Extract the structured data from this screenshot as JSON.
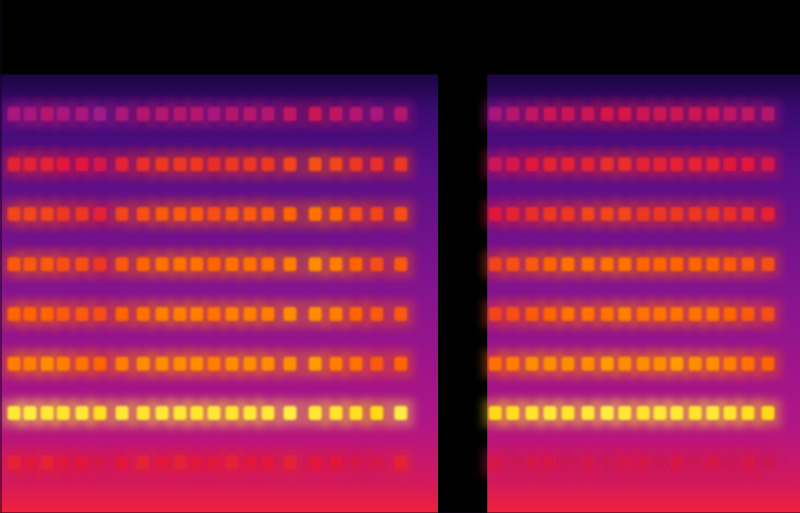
{
  "chart_data": {
    "type": "heatmap",
    "tick_labels": false,
    "xlim": [
      0,
      100
    ],
    "ylim": [
      0,
      100
    ],
    "zlim": [
      0,
      1
    ],
    "segments": [
      {
        "x": [
          0,
          54.75
        ],
        "fmax": 85.5
      },
      {
        "x": [
          60.9,
          100
        ],
        "fmax": 85.5
      }
    ],
    "x": [
      1.75,
      3.75,
      5.9,
      7.9,
      10.25,
      12.5,
      15.25,
      17.9,
      20.25,
      22.5,
      24.6,
      26.75,
      29,
      31.25,
      33.5,
      36.25,
      39.4,
      42,
      44.5,
      47.1,
      50.1,
      61.9,
      64.1,
      66.5,
      68.75,
      71,
      73.5,
      75.9,
      78.1,
      80.4,
      82.5,
      84.6,
      86.9,
      89.1,
      91.25,
      93.5,
      96
    ],
    "y": [
      9.8,
      19.5,
      29.1,
      38.8,
      48.5,
      58.3,
      68.0,
      77.8
    ],
    "values": [
      [
        0.62,
        0.6,
        0.62,
        0.6,
        0.6,
        0.58,
        0.6,
        0.62,
        0.6,
        0.62,
        0.6,
        0.6,
        0.62,
        0.6,
        0.6,
        0.62,
        0.6,
        0.6,
        0.58,
        0.58,
        0.62,
        0.58,
        0.56,
        0.58,
        0.58,
        0.56,
        0.58,
        0.56,
        0.58,
        0.58,
        0.56,
        0.58,
        0.56,
        0.58,
        0.56,
        0.58,
        0.56
      ],
      [
        0.95,
        0.96,
        0.95,
        0.94,
        0.95,
        0.93,
        0.95,
        0.94,
        0.95,
        0.95,
        0.94,
        0.95,
        0.94,
        0.95,
        0.95,
        0.96,
        0.95,
        0.94,
        0.93,
        0.92,
        0.96,
        0.92,
        0.93,
        0.94,
        0.95,
        0.94,
        0.95,
        0.96,
        0.95,
        0.94,
        0.95,
        0.95,
        0.94,
        0.95,
        0.94,
        0.93,
        0.92
      ],
      [
        0.78,
        0.78,
        0.8,
        0.78,
        0.76,
        0.74,
        0.78,
        0.8,
        0.8,
        0.8,
        0.8,
        0.78,
        0.8,
        0.8,
        0.8,
        0.8,
        0.82,
        0.78,
        0.76,
        0.72,
        0.74,
        0.76,
        0.78,
        0.8,
        0.8,
        0.8,
        0.8,
        0.82,
        0.8,
        0.8,
        0.8,
        0.82,
        0.8,
        0.8,
        0.78,
        0.76,
        0.74
      ],
      [
        0.74,
        0.74,
        0.74,
        0.72,
        0.72,
        0.7,
        0.74,
        0.76,
        0.78,
        0.78,
        0.78,
        0.76,
        0.78,
        0.78,
        0.78,
        0.8,
        0.8,
        0.78,
        0.74,
        0.72,
        0.72,
        0.68,
        0.7,
        0.72,
        0.74,
        0.76,
        0.76,
        0.76,
        0.78,
        0.76,
        0.76,
        0.76,
        0.76,
        0.76,
        0.74,
        0.72,
        0.7
      ],
      [
        0.72,
        0.72,
        0.72,
        0.7,
        0.7,
        0.66,
        0.72,
        0.74,
        0.76,
        0.76,
        0.76,
        0.74,
        0.76,
        0.76,
        0.76,
        0.78,
        0.8,
        0.78,
        0.74,
        0.7,
        0.72,
        0.68,
        0.7,
        0.72,
        0.74,
        0.76,
        0.76,
        0.76,
        0.76,
        0.74,
        0.74,
        0.74,
        0.74,
        0.74,
        0.72,
        0.72,
        0.7
      ],
      [
        0.68,
        0.68,
        0.68,
        0.66,
        0.66,
        0.62,
        0.68,
        0.7,
        0.72,
        0.72,
        0.72,
        0.7,
        0.72,
        0.72,
        0.72,
        0.74,
        0.76,
        0.74,
        0.7,
        0.68,
        0.7,
        0.6,
        0.62,
        0.64,
        0.66,
        0.66,
        0.68,
        0.68,
        0.68,
        0.66,
        0.66,
        0.66,
        0.66,
        0.66,
        0.64,
        0.64,
        0.62
      ],
      [
        0.62,
        0.62,
        0.62,
        0.6,
        0.6,
        0.58,
        0.62,
        0.64,
        0.66,
        0.66,
        0.66,
        0.64,
        0.66,
        0.66,
        0.66,
        0.68,
        0.7,
        0.68,
        0.66,
        0.64,
        0.66,
        0.56,
        0.58,
        0.6,
        0.62,
        0.62,
        0.62,
        0.64,
        0.64,
        0.62,
        0.62,
        0.62,
        0.62,
        0.62,
        0.6,
        0.6,
        0.58
      ],
      [
        0.5,
        0.5,
        0.52,
        0.5,
        0.5,
        0.48,
        0.5,
        0.52,
        0.52,
        0.52,
        0.52,
        0.5,
        0.52,
        0.52,
        0.52,
        0.54,
        0.56,
        0.54,
        0.52,
        0.5,
        0.52,
        0.5,
        0.52,
        0.54,
        0.56,
        0.56,
        0.56,
        0.58,
        0.58,
        0.56,
        0.56,
        0.56,
        0.56,
        0.56,
        0.54,
        0.54,
        0.52
      ]
    ]
  }
}
